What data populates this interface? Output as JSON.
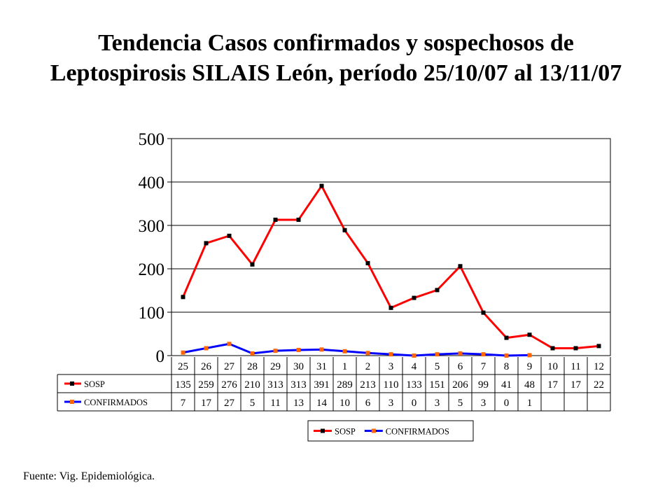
{
  "title": "Tendencia Casos confirmados y sospechosos de Leptospirosis SILAIS León, período 25/10/07 al 13/11/07",
  "source": "Fuente: Vig. Epidemiológica.",
  "chart_data": {
    "type": "line",
    "categories": [
      "25",
      "26",
      "27",
      "28",
      "29",
      "30",
      "31",
      "1",
      "2",
      "3",
      "4",
      "5",
      "6",
      "7",
      "8",
      "9",
      "10",
      "11",
      "12"
    ],
    "series": [
      {
        "name": "SOSP",
        "color": "#ff0000",
        "marker_color": "#000000",
        "values": [
          135,
          259,
          276,
          210,
          313,
          313,
          391,
          289,
          213,
          110,
          133,
          151,
          206,
          99,
          41,
          48,
          17,
          17,
          22
        ]
      },
      {
        "name": "CONFIRMADOS",
        "color": "#0000ff",
        "marker_color": "#ff6600",
        "values": [
          7,
          17,
          27,
          5,
          11,
          13,
          14,
          10,
          6,
          3,
          0,
          3,
          5,
          3,
          0,
          1,
          null,
          null,
          null
        ]
      }
    ],
    "ylim": [
      0,
      500
    ],
    "yticks": [
      0,
      100,
      200,
      300,
      400,
      500
    ],
    "grid": true,
    "data_table": true,
    "legend": "bottom"
  }
}
